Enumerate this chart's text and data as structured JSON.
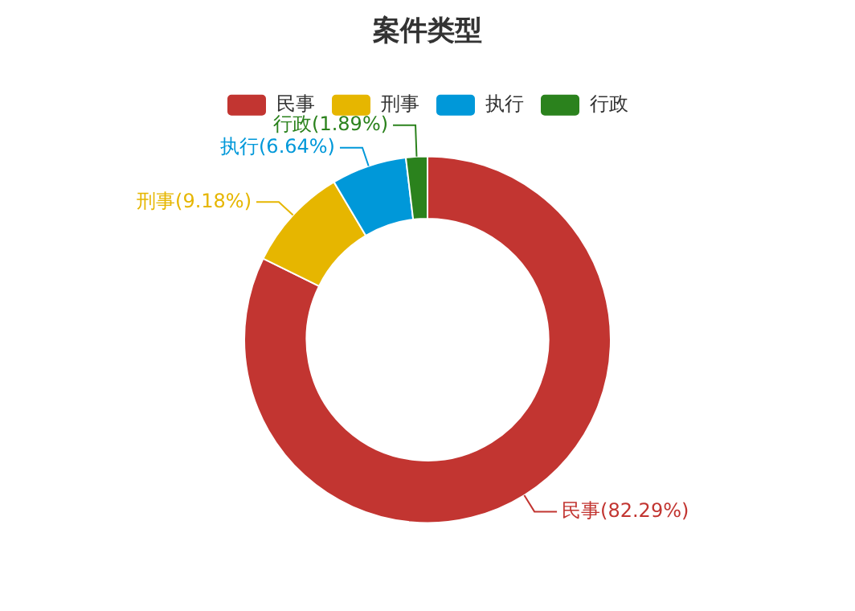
{
  "chart_data": {
    "type": "donut",
    "title": "案件类型",
    "categories": [
      "民事",
      "刑事",
      "执行",
      "行政"
    ],
    "values": [
      82.29,
      9.18,
      6.64,
      1.89
    ],
    "colors": [
      "#c23531",
      "#e6b600",
      "#0098d9",
      "#2b821d"
    ],
    "value_labels": [
      "民事(82.29%)",
      "刑事(9.18%)",
      "执行(6.64%)",
      "行政(1.89%)"
    ],
    "legend": "top"
  }
}
